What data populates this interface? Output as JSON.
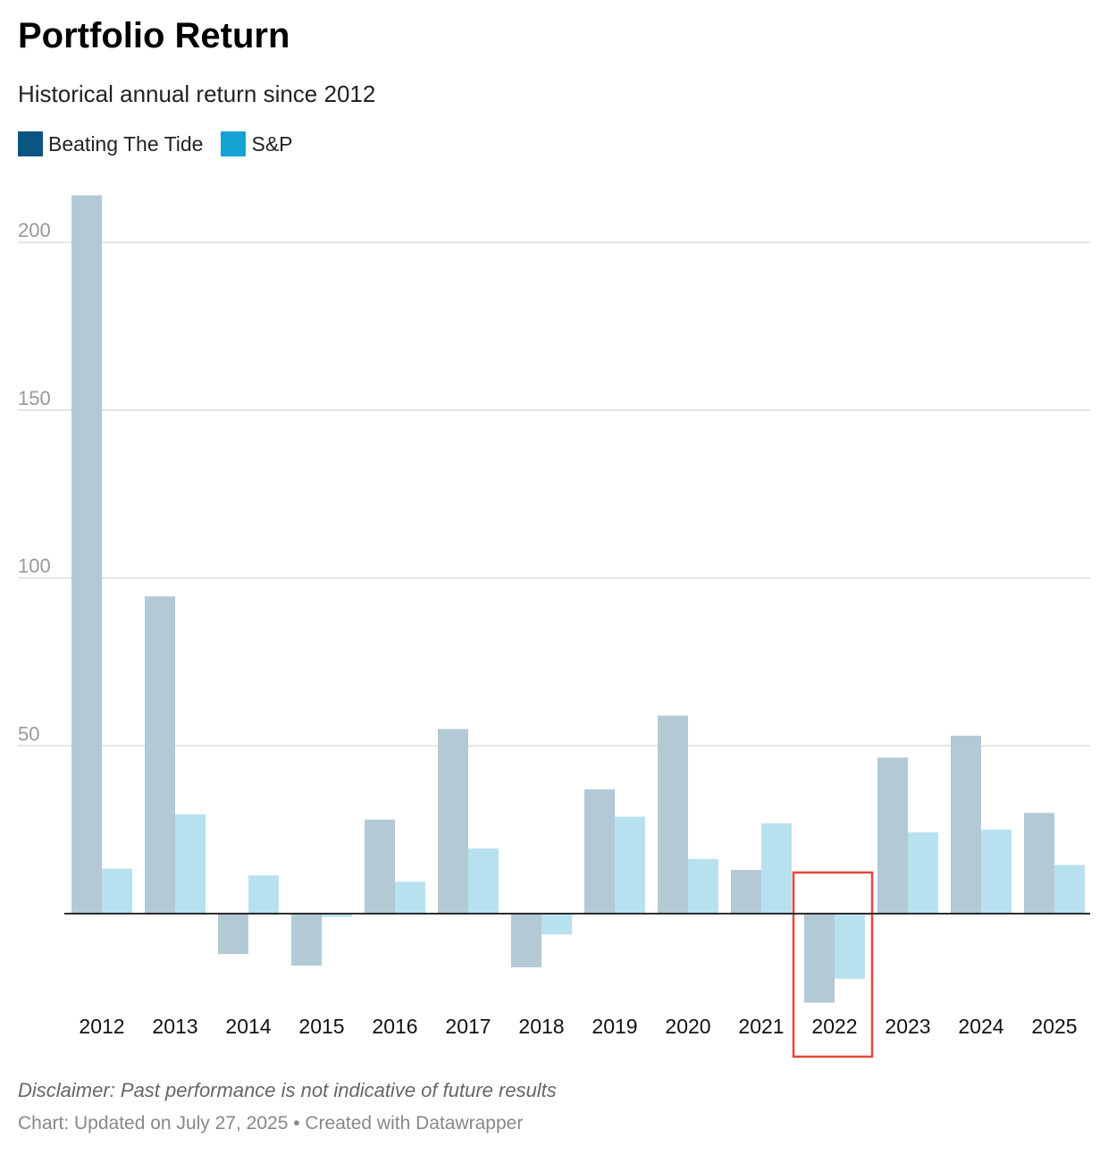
{
  "header": {
    "title": "Portfolio Return",
    "subtitle": "Historical annual return since 2012"
  },
  "legend": [
    {
      "label": "Beating The Tide",
      "color": "#0b5582"
    },
    {
      "label": "S&P",
      "color": "#17a2d4"
    }
  ],
  "footer": {
    "notes": "Disclaimer: Past performance is not indicative of future results",
    "source": "Chart: Updated on July 27, 2025 • Created with Datawrapper"
  },
  "highlight_color": "#e8453c",
  "chart_data": {
    "type": "bar",
    "categories": [
      "2012",
      "2013",
      "2014",
      "2015",
      "2016",
      "2017",
      "2018",
      "2019",
      "2020",
      "2021",
      "2022",
      "2023",
      "2024",
      "2025"
    ],
    "series": [
      {
        "name": "Beating The Tide",
        "color": "#b3c9d6",
        "values": [
          214,
          94.5,
          -12,
          -15.5,
          28,
          55,
          -16,
          37,
          59,
          13,
          -26.5,
          46.5,
          53,
          30
        ]
      },
      {
        "name": "S&P",
        "color": "#b8e1ef",
        "values": [
          13.4,
          29.6,
          11.4,
          -1,
          9.5,
          19.4,
          -6.2,
          28.9,
          16.3,
          26.9,
          -19.4,
          24.2,
          25,
          14.5
        ]
      }
    ],
    "yticks": [
      50,
      100,
      150,
      200
    ],
    "ylim": [
      -26.5,
      214
    ],
    "grid": true,
    "legend_position": "top-left",
    "highlighted_category": "2022"
  }
}
